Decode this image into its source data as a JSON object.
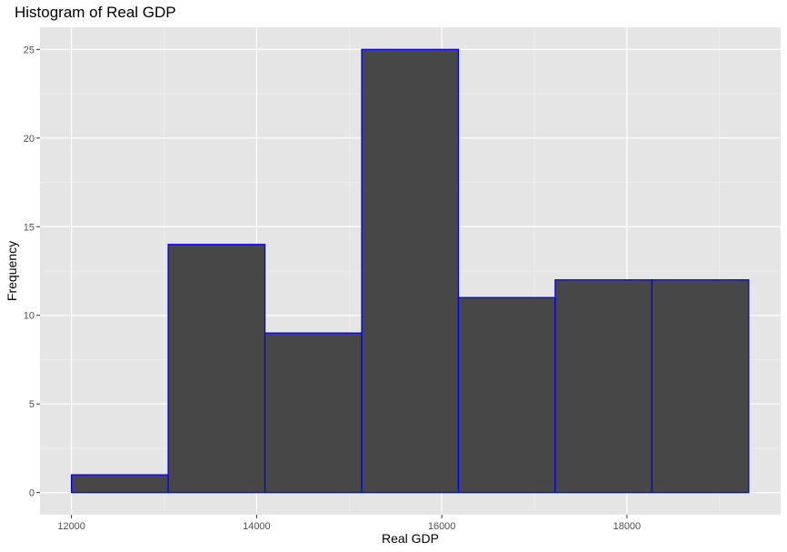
{
  "chart_data": {
    "type": "histogram",
    "title": "Histogram of Real GDP",
    "xlabel": "Real GDP",
    "ylabel": "Frequency",
    "xlim": [
      11660,
      19660
    ],
    "ylim": [
      -1.25,
      26.25
    ],
    "x_ticks": [
      12000,
      14000,
      16000,
      18000
    ],
    "x_tick_labels": [
      "12000",
      "14000",
      "16000",
      "18000"
    ],
    "x_minor_ticks": [
      13000,
      15000,
      17000,
      19000
    ],
    "y_ticks": [
      0,
      5,
      10,
      15,
      20,
      25
    ],
    "y_tick_labels": [
      "0",
      "5",
      "10",
      "15",
      "20",
      "25"
    ],
    "y_minor_ticks": [
      2.5,
      7.5,
      12.5,
      17.5,
      22.5
    ],
    "bins": [
      {
        "x_start": 12000,
        "x_end": 13045,
        "count": 1
      },
      {
        "x_start": 13045,
        "x_end": 14090,
        "count": 14
      },
      {
        "x_start": 14090,
        "x_end": 15135,
        "count": 9
      },
      {
        "x_start": 15135,
        "x_end": 16180,
        "count": 25
      },
      {
        "x_start": 16180,
        "x_end": 17225,
        "count": 11
      },
      {
        "x_start": 17225,
        "x_end": 18270,
        "count": 12
      },
      {
        "x_start": 18270,
        "x_end": 19315,
        "count": 12
      }
    ],
    "grid": true,
    "legend": "none"
  },
  "colors": {
    "panel_background": "#e5e5e5",
    "grid_major": "#ffffff",
    "grid_minor": "#f2f2f2",
    "bar_fill": "#474747",
    "bar_outline": "#0000ff",
    "tick_color": "#333333",
    "tick_label_color": "#4d4d4d"
  }
}
